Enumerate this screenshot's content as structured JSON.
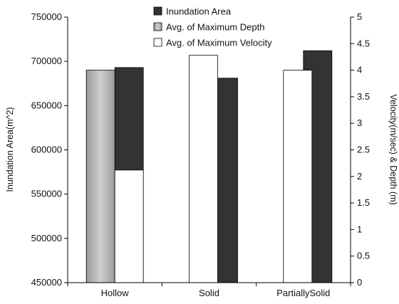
{
  "chart_data": {
    "type": "bar",
    "categories": [
      "Hollow",
      "Solid",
      "PartiallySolid"
    ],
    "series": [
      {
        "name": "Inundation Area",
        "axis": "left",
        "color": "#333333",
        "values": [
          693000,
          681000,
          712000
        ]
      },
      {
        "name": "Avg. of Maximum Depth",
        "axis": "right",
        "color": "#b0b0b0",
        "values": [
          4.0,
          null,
          null
        ]
      },
      {
        "name": "Avg. of Maximum Velocity",
        "axis": "right",
        "color": "#ffffff",
        "values": [
          2.12,
          4.28,
          4.0
        ]
      }
    ],
    "ylabel": "Inundation Area(m^2)",
    "y2label": "Velocity(m/sec) & Depth (m)",
    "ylim": [
      450000,
      750000
    ],
    "y2lim": [
      0,
      5
    ],
    "yticks": [
      "450000",
      "500000",
      "550000",
      "600000",
      "650000",
      "700000",
      "750000"
    ],
    "y2ticks": [
      "0",
      "0.5",
      "1",
      "1.5",
      "2",
      "2.5",
      "3",
      "3.5",
      "4",
      "4.5",
      "5"
    ],
    "legend_position": "top-center",
    "grid": false
  }
}
